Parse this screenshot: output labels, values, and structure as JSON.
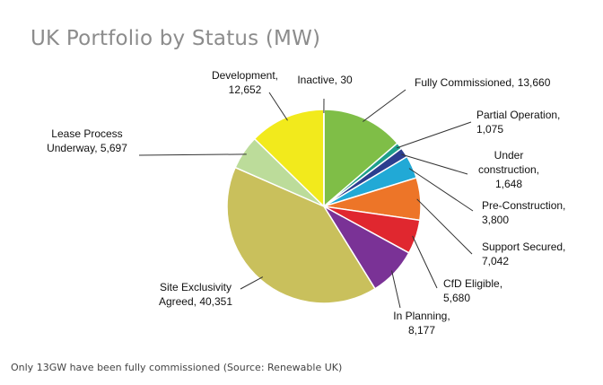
{
  "chart_data": {
    "type": "pie",
    "title": "UK Portfolio by Status (MW)",
    "slices": [
      {
        "label": "Fully Commissioned",
        "value": 13660,
        "value_text": "13,660",
        "color": "#7fbe47"
      },
      {
        "label": "Partial Operation",
        "value": 1075,
        "value_text": "1,075",
        "color": "#1e9f8b"
      },
      {
        "label": "Under construction",
        "value": 1648,
        "value_text": "1,648",
        "color": "#2c3e8f"
      },
      {
        "label": "Pre-Construction",
        "value": 3800,
        "value_text": "3,800",
        "color": "#21a9d6"
      },
      {
        "label": "Support Secured",
        "value": 7042,
        "value_text": "7,042",
        "color": "#ed7528"
      },
      {
        "label": "CfD Eligible",
        "value": 5680,
        "value_text": "5,680",
        "color": "#e0272f"
      },
      {
        "label": "In Planning",
        "value": 8177,
        "value_text": "8,177",
        "color": "#7a3296"
      },
      {
        "label": "Site Exclusivity Agreed",
        "value": 40351,
        "value_text": "40,351",
        "color": "#c9c05c"
      },
      {
        "label": "Lease Process Underway",
        "value": 5697,
        "value_text": "5,697",
        "color": "#bcdc9a"
      },
      {
        "label": "Development",
        "value": 12652,
        "value_text": "12,652",
        "color": "#f2ea1c"
      },
      {
        "label": "Inactive",
        "value": 30,
        "value_text": "30",
        "color": "#8a8a8a"
      }
    ]
  },
  "caption": "Only 13GW have been fully commissioned (Source: Renewable UK)"
}
